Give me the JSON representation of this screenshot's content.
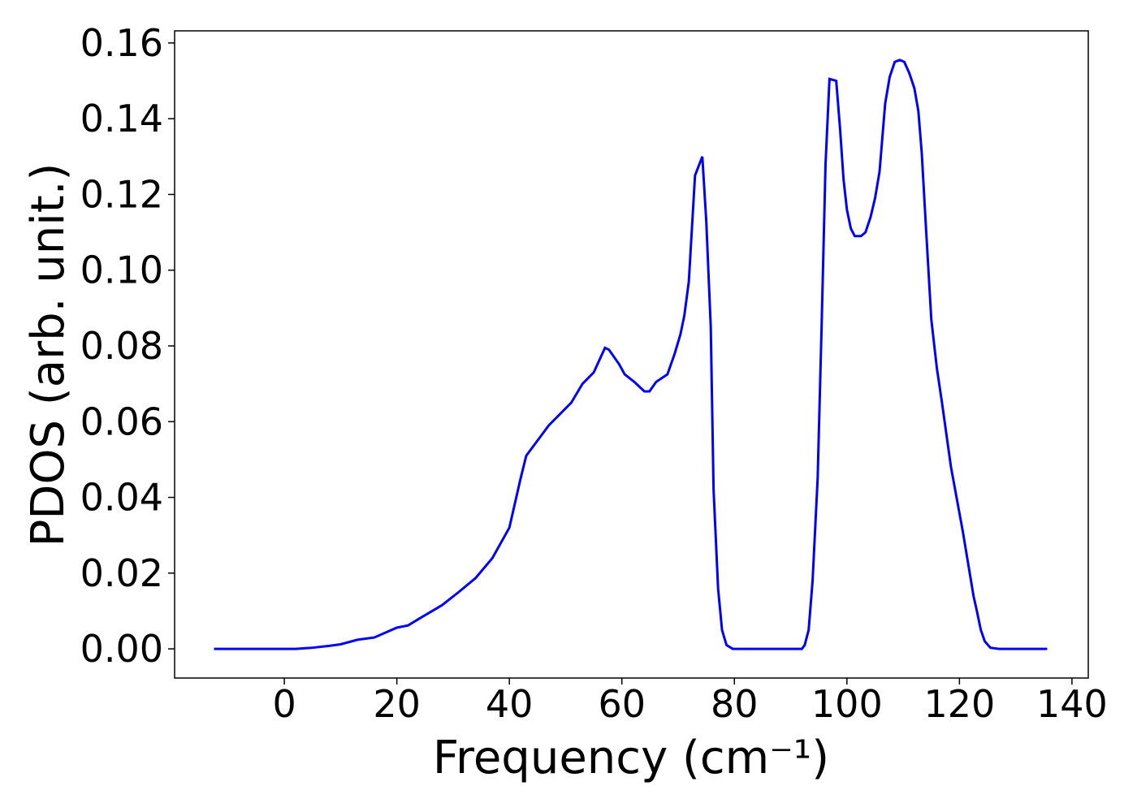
{
  "chart_data": {
    "type": "line",
    "x_label": "Frequency (cm⁻¹)",
    "y_label": "PDOS (arb. unit.)",
    "series": [
      {
        "color": "#0000ff",
        "x": [
          -12.5,
          0,
          2,
          5,
          8,
          10,
          13,
          16,
          20,
          22,
          24,
          28,
          31,
          34,
          37,
          40,
          42,
          43,
          45,
          47,
          49,
          51,
          53,
          55,
          57,
          57.7,
          59.5,
          60.5,
          62.2,
          64,
          64.9,
          66.1,
          67.1,
          68.1,
          69.4,
          70.4,
          71.1,
          71.9,
          73,
          74.3,
          75,
          75.8,
          76.3,
          77.1,
          77.8,
          78.6,
          79.7,
          92,
          92.5,
          93.2,
          93.9,
          94.8,
          95.5,
          96.2,
          96.9,
          98.1,
          98.8,
          99.4,
          100,
          100.7,
          101.4,
          102.5,
          103.3,
          104.2,
          105,
          105.8,
          106.8,
          107.6,
          108.5,
          109.4,
          110.2,
          111.1,
          112,
          112.7,
          113.3,
          114.1,
          115,
          116,
          116.9,
          118.5,
          120.6,
          122.5,
          123.1,
          123.8,
          124.5,
          125.5,
          127,
          135.6
        ],
        "values": [
          0,
          0,
          0,
          0.0003,
          0.0008,
          0.0012,
          0.0024,
          0.003,
          0.0056,
          0.0062,
          0.008,
          0.0115,
          0.015,
          0.0187,
          0.024,
          0.032,
          0.045,
          0.051,
          0.055,
          0.059,
          0.062,
          0.065,
          0.07,
          0.073,
          0.0795,
          0.079,
          0.0752,
          0.0725,
          0.0705,
          0.068,
          0.068,
          0.0705,
          0.0715,
          0.0725,
          0.078,
          0.083,
          0.088,
          0.097,
          0.125,
          0.13,
          0.113,
          0.085,
          0.042,
          0.016,
          0.005,
          0.001,
          0,
          0,
          0.001,
          0.005,
          0.018,
          0.045,
          0.085,
          0.128,
          0.1505,
          0.15,
          0.137,
          0.124,
          0.116,
          0.111,
          0.109,
          0.109,
          0.11,
          0.114,
          0.119,
          0.126,
          0.144,
          0.151,
          0.155,
          0.1555,
          0.155,
          0.152,
          0.148,
          0.142,
          0.131,
          0.11,
          0.087,
          0.074,
          0.065,
          0.048,
          0.031,
          0.014,
          0.01,
          0.005,
          0.002,
          0.0003,
          0,
          0
        ]
      }
    ],
    "xlim": [
      -19.5,
      142.9
    ],
    "xticks": [
      0,
      20,
      40,
      60,
      80,
      100,
      120,
      140
    ],
    "ylim": [
      -0.0077,
      0.1632
    ],
    "yticks": [
      {
        "value": 0,
        "label": "0.00"
      },
      {
        "value": 0.02,
        "label": "0.02"
      },
      {
        "value": 0.04,
        "label": "0.04"
      },
      {
        "value": 0.06,
        "label": "0.06"
      },
      {
        "value": 0.08,
        "label": "0.08"
      },
      {
        "value": 0.1,
        "label": "0.10"
      },
      {
        "value": 0.12,
        "label": "0.12"
      },
      {
        "value": 0.14,
        "label": "0.14"
      },
      {
        "value": 0.16,
        "label": "0.16"
      }
    ],
    "grid": false
  }
}
